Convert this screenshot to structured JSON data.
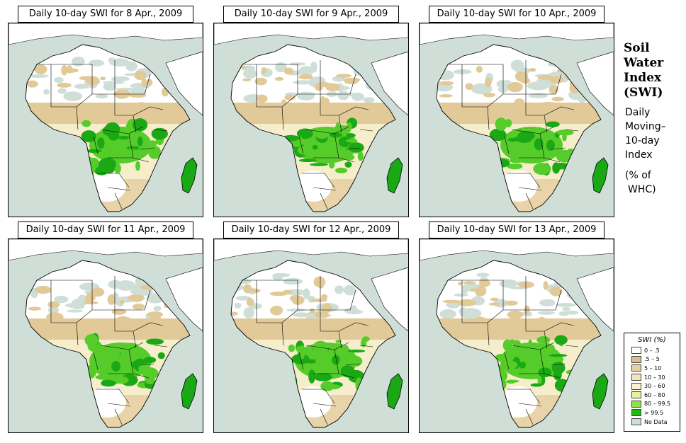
{
  "panels": [
    {
      "title": "Daily 10-day SWI for  8 Apr., 2009",
      "seed": 11
    },
    {
      "title": "Daily 10-day SWI for  9 Apr., 2009",
      "seed": 23
    },
    {
      "title": "Daily 10-day SWI for 10 Apr., 2009",
      "seed": 37
    },
    {
      "title": "Daily 10-day SWI for 11 Apr., 2009",
      "seed": 41
    },
    {
      "title": "Daily 10-day SWI for 12 Apr., 2009",
      "seed": 53
    },
    {
      "title": "Daily 10-day SWI for 13 Apr., 2009",
      "seed": 67
    }
  ],
  "side": {
    "title_lines": [
      "Soil",
      "Water",
      "Index",
      "(SWI)"
    ],
    "subtitle_lines": [
      "Daily",
      "Moving–",
      "10-day",
      "Index"
    ],
    "unit_lines": [
      "(% of",
      "WHC)"
    ]
  },
  "legend": {
    "title": "SWI (%)",
    "items": [
      {
        "label": "0 – .5",
        "color": "#ffffff"
      },
      {
        "label": ".5 – 5",
        "color": "#d8bf8c"
      },
      {
        "label": "5 – 10",
        "color": "#e6cfa0"
      },
      {
        "label": "10 – 30",
        "color": "#f3e4bd"
      },
      {
        "label": "30 – 60",
        "color": "#f8f3cc"
      },
      {
        "label": "60 – 80",
        "color": "#e7f59a"
      },
      {
        "label": "80 – 99.5",
        "color": "#8fe04a"
      },
      {
        "label": "> 99.5",
        "color": "#22b814"
      },
      {
        "label": "No Data",
        "color": "#cfdfd8"
      }
    ]
  },
  "colors": {
    "ocean": "#cfdfd8",
    "sahara": "#ffffff",
    "nodata": "#cfdfd8",
    "dry": "#e2c998",
    "light": "#f6eecb",
    "green": "#55cc2a",
    "dark_green": "#1aa814"
  }
}
